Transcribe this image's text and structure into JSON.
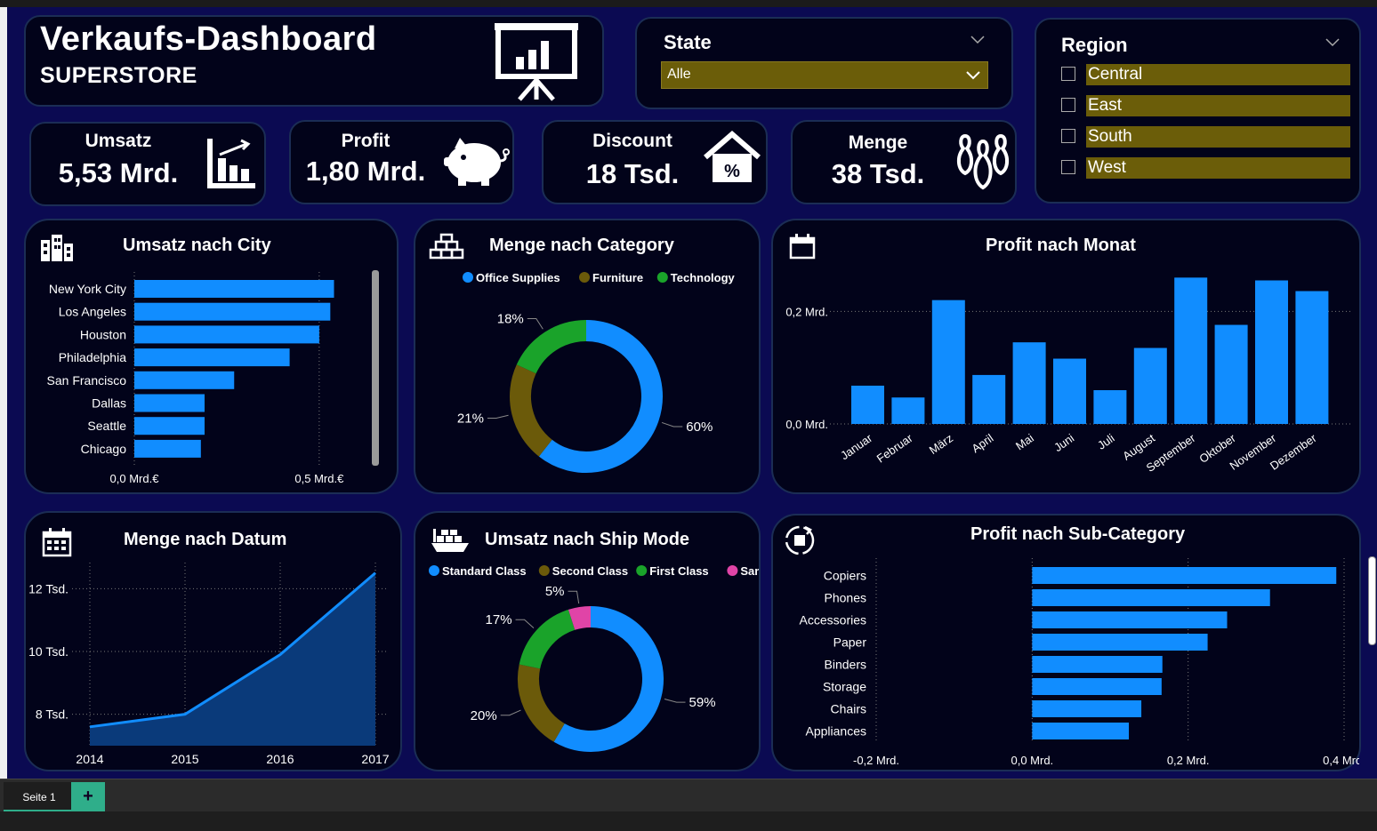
{
  "header": {
    "title": "Verkaufs-Dashboard",
    "subtitle": "SUPERSTORE"
  },
  "state_slicer": {
    "title": "State",
    "selected": "Alle"
  },
  "region_slicer": {
    "title": "Region",
    "items": [
      "Central",
      "East",
      "South",
      "West"
    ]
  },
  "kpis": {
    "umsatz": {
      "label": "Umsatz",
      "value": "5,53 Mrd."
    },
    "profit": {
      "label": "Profit",
      "value": "1,80 Mrd."
    },
    "discount": {
      "label": "Discount",
      "value": "18 Tsd."
    },
    "menge": {
      "label": "Menge",
      "value": "38 Tsd."
    }
  },
  "colors": {
    "accent": "#118dff",
    "office": "#118dff",
    "furniture": "#6b5a0a",
    "technology": "#1aa32a",
    "sameday": "#e044a7",
    "slicer_fill": "#6b5d09"
  },
  "chart_data": [
    {
      "id": "city",
      "type": "bar",
      "title": "Umsatz nach City",
      "categories": [
        "New York City",
        "Los Angeles",
        "Houston",
        "Philadelphia",
        "San Francisco",
        "Dallas",
        "Seattle",
        "Chicago"
      ],
      "values": [
        0.54,
        0.53,
        0.5,
        0.42,
        0.27,
        0.19,
        0.19,
        0.18
      ],
      "xlim": [
        0,
        0.7
      ],
      "xticks": [
        {
          "v": 0,
          "label": "0,0 Mrd.€"
        },
        {
          "v": 0.5,
          "label": "0,5 Mrd.€"
        }
      ]
    },
    {
      "id": "category",
      "type": "pie",
      "title": "Menge nach Category",
      "categories": [
        "Office Supplies",
        "Furniture",
        "Technology"
      ],
      "values": [
        60,
        21,
        18
      ],
      "labels": [
        "60%",
        "21%",
        "18%"
      ]
    },
    {
      "id": "monat",
      "type": "bar",
      "title": "Profit nach Monat",
      "categories": [
        "Januar",
        "Februar",
        "März",
        "April",
        "Mai",
        "Juni",
        "Juli",
        "August",
        "September",
        "Oktober",
        "November",
        "Dezember"
      ],
      "values": [
        0.068,
        0.047,
        0.22,
        0.087,
        0.145,
        0.116,
        0.06,
        0.135,
        0.26,
        0.176,
        0.255,
        0.236
      ],
      "ylim": [
        0,
        0.27
      ],
      "yticks": [
        {
          "v": 0,
          "label": "0,0 Mrd."
        },
        {
          "v": 0.2,
          "label": "0,2 Mrd."
        }
      ]
    },
    {
      "id": "datum",
      "type": "area",
      "title": "Menge nach Datum",
      "x": [
        "2014",
        "2015",
        "2016",
        "2017"
      ],
      "values": [
        7600,
        8000,
        9900,
        12500
      ],
      "ylim": [
        7000,
        13000
      ],
      "yticks": [
        {
          "v": 8000,
          "label": "8 Tsd."
        },
        {
          "v": 10000,
          "label": "10 Tsd."
        },
        {
          "v": 12000,
          "label": "12 Tsd."
        }
      ]
    },
    {
      "id": "shipmode",
      "type": "pie",
      "title": "Umsatz nach Ship Mode",
      "categories": [
        "Standard Class",
        "Second Class",
        "First Class",
        "Same Day"
      ],
      "values": [
        59,
        20,
        17,
        5
      ],
      "labels": [
        "59%",
        "20%",
        "17%",
        "5%"
      ]
    },
    {
      "id": "subcat",
      "type": "bar",
      "title": "Profit nach Sub-Category",
      "categories": [
        "Copiers",
        "Phones",
        "Accessories",
        "Paper",
        "Binders",
        "Storage",
        "Chairs",
        "Appliances"
      ],
      "values": [
        0.39,
        0.305,
        0.25,
        0.225,
        0.167,
        0.166,
        0.14,
        0.124
      ],
      "xlim": [
        -0.2,
        0.4
      ],
      "xticks": [
        {
          "v": -0.2,
          "label": "-0,2 Mrd."
        },
        {
          "v": 0,
          "label": "0,0 Mrd."
        },
        {
          "v": 0.2,
          "label": "0,2 Mrd."
        },
        {
          "v": 0.4,
          "label": "0,4 Mrd."
        }
      ]
    }
  ],
  "footer": {
    "tab": "Seite 1",
    "add": "+"
  }
}
